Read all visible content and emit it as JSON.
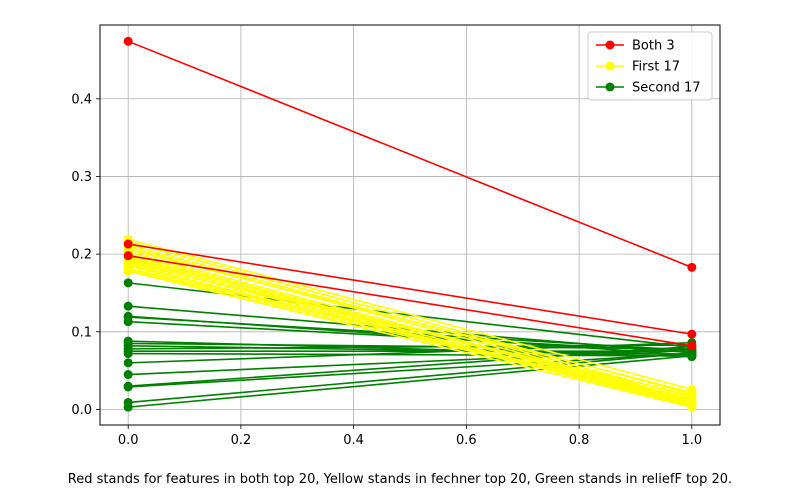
{
  "chart_data": {
    "type": "line",
    "title": "",
    "xlabel": "",
    "ylabel": "",
    "xlim": [
      -0.05,
      1.05
    ],
    "ylim": [
      -0.02,
      0.495
    ],
    "xticks": [
      0.0,
      0.2,
      0.4,
      0.6,
      0.8,
      1.0
    ],
    "xtick_labels": [
      "0.0",
      "0.2",
      "0.4",
      "0.6",
      "0.8",
      "1.0"
    ],
    "yticks": [
      0.0,
      0.1,
      0.2,
      0.3,
      0.4
    ],
    "ytick_labels": [
      "0.0",
      "0.1",
      "0.2",
      "0.3",
      "0.4"
    ],
    "grid": true,
    "legend_position": "top-right",
    "legend": [
      {
        "label": "Both 3",
        "color": "#ff0000"
      },
      {
        "label": "First 17",
        "color": "#ffff00"
      },
      {
        "label": "Second 17",
        "color": "#008000"
      }
    ],
    "groups": [
      {
        "name": "Both 3",
        "color": "#ff0000",
        "lines": [
          [
            0.474,
            0.183
          ],
          [
            0.213,
            0.097
          ],
          [
            0.198,
            0.082
          ]
        ]
      },
      {
        "name": "First 17",
        "color": "#ffff00",
        "lines": [
          [
            0.219,
            0.026
          ],
          [
            0.216,
            0.02
          ],
          [
            0.212,
            0.016
          ],
          [
            0.209,
            0.013
          ],
          [
            0.206,
            0.022
          ],
          [
            0.203,
            0.01
          ],
          [
            0.2,
            0.008
          ],
          [
            0.197,
            0.012
          ],
          [
            0.195,
            0.006
          ],
          [
            0.193,
            0.014
          ],
          [
            0.191,
            0.005
          ],
          [
            0.189,
            0.018
          ],
          [
            0.187,
            0.004
          ],
          [
            0.185,
            0.009
          ],
          [
            0.182,
            0.011
          ],
          [
            0.18,
            0.007
          ],
          [
            0.178,
            0.003
          ]
        ]
      },
      {
        "name": "Second 17",
        "color": "#008000",
        "lines": [
          [
            0.163,
            0.08
          ],
          [
            0.133,
            0.073
          ],
          [
            0.12,
            0.07
          ],
          [
            0.119,
            0.076
          ],
          [
            0.113,
            0.074
          ],
          [
            0.088,
            0.068
          ],
          [
            0.085,
            0.078
          ],
          [
            0.082,
            0.071
          ],
          [
            0.078,
            0.083
          ],
          [
            0.075,
            0.075
          ],
          [
            0.072,
            0.069
          ],
          [
            0.06,
            0.086
          ],
          [
            0.045,
            0.077
          ],
          [
            0.03,
            0.081
          ],
          [
            0.029,
            0.072
          ],
          [
            0.009,
            0.073
          ],
          [
            0.003,
            0.069
          ]
        ]
      }
    ]
  },
  "caption": "Red stands for features in both top 20, Yellow stands in fechner top 20, Green stands in reliefF top 20."
}
